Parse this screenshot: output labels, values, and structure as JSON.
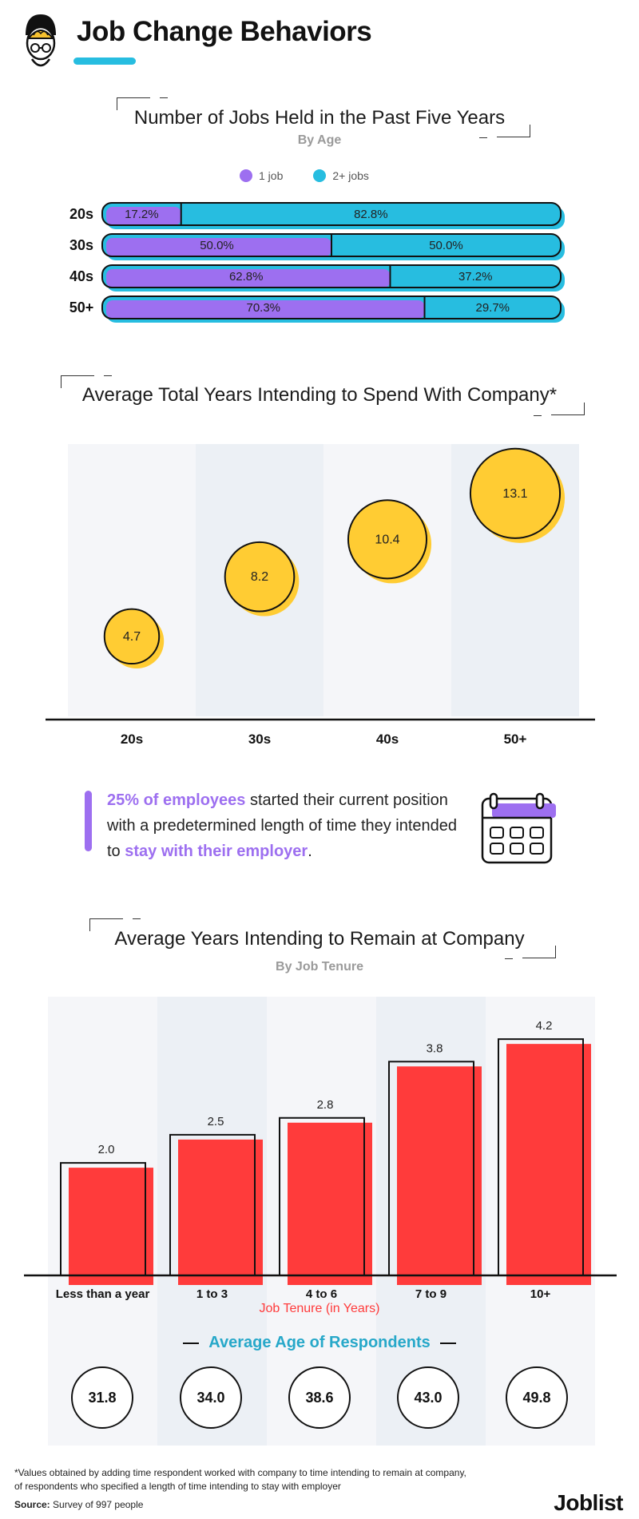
{
  "header": {
    "title": "Job Change Behaviors"
  },
  "colors": {
    "purple": "#9d6ff0",
    "cyan": "#27bde0",
    "yellow": "#ffcc33",
    "red": "#ff3b3b",
    "col_light": "#f5f6f9",
    "col_dark": "#ecf0f5"
  },
  "chart_data": [
    {
      "type": "bar",
      "orientation": "horizontal-stacked",
      "title": "Number of Jobs Held in the Past Five Years",
      "subtitle": "By Age",
      "legend_position": "top-center",
      "categories": [
        "20s",
        "30s",
        "40s",
        "50+"
      ],
      "series": [
        {
          "name": "1 job",
          "values": [
            17.2,
            50.0,
            62.8,
            70.3
          ],
          "labels": [
            "17.2%",
            "50.0%",
            "62.8%",
            "70.3%"
          ]
        },
        {
          "name": "2+ jobs",
          "values": [
            82.8,
            50.0,
            37.2,
            29.7
          ],
          "labels": [
            "82.8%",
            "50.0%",
            "37.2%",
            "29.7%"
          ]
        }
      ]
    },
    {
      "type": "scatter",
      "title": "Average Total Years Intending to Spend With Company*",
      "categories": [
        "20s",
        "30s",
        "40s",
        "50+"
      ],
      "values": [
        4.7,
        8.2,
        10.4,
        13.1
      ],
      "labels": [
        "4.7",
        "8.2",
        "10.4",
        "13.1"
      ],
      "ylim": [
        0,
        16
      ]
    },
    {
      "type": "bar",
      "title": "Average Years Intending to Remain at Company",
      "subtitle": "By Job Tenure",
      "xlabel": "Job Tenure (in Years)",
      "categories": [
        "Less than a year",
        "1 to 3",
        "4 to 6",
        "7 to 9",
        "10+"
      ],
      "values": [
        2.0,
        2.5,
        2.8,
        3.8,
        4.2
      ],
      "labels": [
        "2.0",
        "2.5",
        "2.8",
        "3.8",
        "4.2"
      ],
      "ylim": [
        0,
        4.5
      ]
    }
  ],
  "stat": {
    "highlight1": "25% of employees",
    "text1": " started their current position with a predetermined length of time they intended to ",
    "highlight2": "stay with their employer",
    "text2": "."
  },
  "ages": {
    "title": "Average Age of Respondents",
    "values": [
      "31.8",
      "34.0",
      "38.6",
      "43.0",
      "49.8"
    ]
  },
  "footer": {
    "note_line1": "*Values obtained by adding time respondent worked with company to time intending to remain at company,",
    "note_line2": "of respondents who specified a length of time intending to stay with employer",
    "source_label": "Source:",
    "source_text": " Survey of 997 people",
    "brand": "Joblist"
  }
}
